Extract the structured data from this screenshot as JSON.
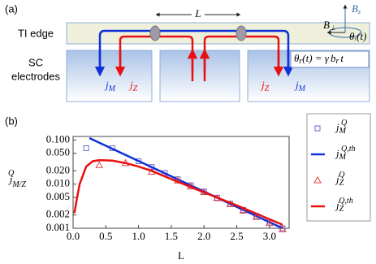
{
  "diagram": {
    "panel_label": "(a)",
    "length_label": "L",
    "row_labels": {
      "ti_edge": "TI edge",
      "sc_line1": "SC",
      "sc_line2": "electrodes"
    },
    "currents": [
      {
        "base": "j",
        "sub": "M"
      },
      {
        "base": "j",
        "sub": "Z"
      },
      {
        "base": "j",
        "sub": "Z"
      },
      {
        "base": "j",
        "sub": "M"
      }
    ],
    "field_labels": {
      "bz": {
        "base": "B",
        "sub": "z"
      },
      "bperp": {
        "base": "B",
        "sub": "⊥"
      },
      "theta": {
        "base": "θ",
        "sub": "r",
        "rest": "(t)"
      }
    },
    "equation": [
      "θ",
      "r",
      "(t) = γ",
      "b",
      "r",
      "t"
    ]
  },
  "chart_data": {
    "type": "line",
    "panel_label": "(b)",
    "x_label": "L",
    "y_label": {
      "base": "j",
      "sup": "Q",
      "sub": "M/Z"
    },
    "log_y": true,
    "xlim": [
      0,
      3.3
    ],
    "ylim": [
      0.001,
      0.12
    ],
    "xticks": [
      {
        "value": 0,
        "label": "0.0"
      },
      0.5,
      {
        "value": 1,
        "label": "1.0"
      },
      1.5,
      {
        "value": 2,
        "label": "2.0"
      },
      2.5,
      {
        "value": 3,
        "label": "3.0"
      }
    ],
    "yticks": [
      0.001,
      0.002,
      0.005,
      {
        "value": 0.01,
        "label": "0.010"
      },
      {
        "value": 0.02,
        "label": "0.020"
      },
      {
        "value": 0.05,
        "label": "0.050"
      },
      {
        "value": 0.1,
        "label": "0.100"
      }
    ],
    "series": [
      {
        "name": "j",
        "sub": "M",
        "sup": "Q",
        "style": "square",
        "color": "#6a6ad8",
        "x": [
          0.2,
          0.6,
          1.0,
          1.2,
          1.4,
          1.6,
          1.8,
          2.0,
          2.2,
          2.4,
          2.6,
          2.8,
          3.0,
          3.2
        ],
        "values": [
          0.065,
          0.065,
          0.033,
          0.0243,
          0.0179,
          0.0129,
          0.0094,
          0.0068,
          0.0049,
          0.0036,
          0.0026,
          0.0019,
          0.0014,
          0.001
        ]
      },
      {
        "name": "j",
        "sub": "M",
        "sup": "Q,th",
        "style": "line",
        "color": "#1030d8",
        "x": [
          0.25,
          3.2
        ],
        "values": [
          0.11,
          0.001
        ]
      },
      {
        "name": "j",
        "sub": "Z",
        "sup": "Q",
        "style": "triangle",
        "color": "#e04040",
        "x": [
          0.4,
          0.8,
          1.2,
          1.6,
          1.8,
          2.0,
          2.2,
          2.4,
          2.6,
          2.8,
          3.0,
          3.2
        ],
        "values": [
          0.027,
          0.03,
          0.019,
          0.012,
          0.0088,
          0.0066,
          0.0048,
          0.0035,
          0.0025,
          0.0018,
          0.0013,
          0.00095
        ]
      },
      {
        "name": "j",
        "sub": "Z",
        "sup": "Q,th",
        "style": "line",
        "color": "#e81010",
        "x": [
          0.02,
          0.05,
          0.1,
          0.2,
          0.3,
          0.4,
          0.6,
          0.8,
          1.0,
          1.2,
          1.5,
          2.0,
          2.5,
          3.0,
          3.2
        ],
        "values": [
          0.0022,
          0.004,
          0.01,
          0.025,
          0.033,
          0.035,
          0.034,
          0.03,
          0.025,
          0.02,
          0.013,
          0.0065,
          0.0033,
          0.0016,
          0.0012
        ]
      }
    ]
  }
}
